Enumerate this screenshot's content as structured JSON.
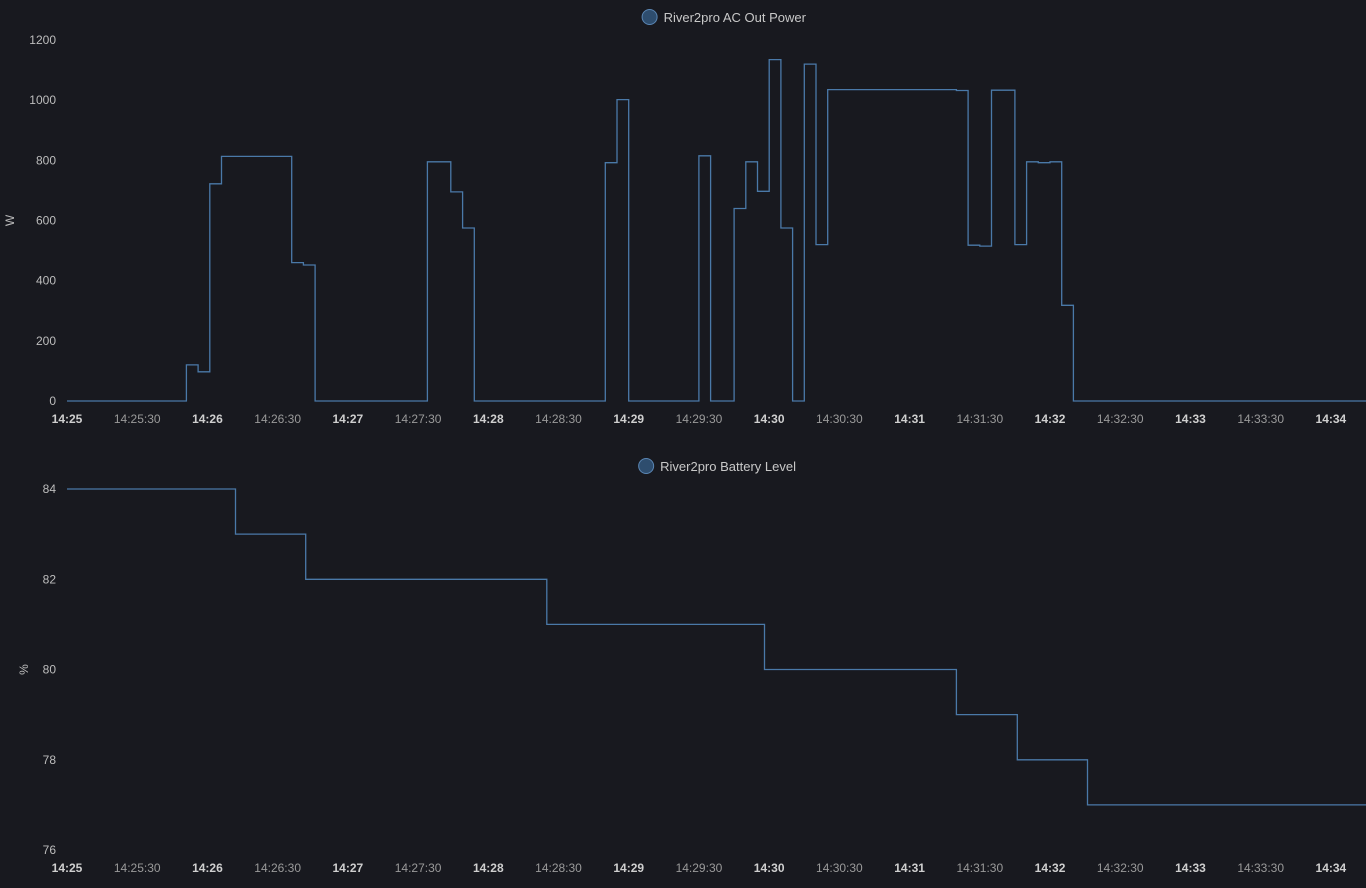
{
  "colors": {
    "background": "#18191f",
    "series": "#4a79a8",
    "legend_marker_fill": "#2e4d6e",
    "legend_marker_stroke": "#5a86b4",
    "axis_line": "#3a3c44"
  },
  "chart_data": [
    {
      "type": "line",
      "step": true,
      "ylabel": "W",
      "ylim": [
        0,
        1200
      ],
      "yticks": [
        0,
        200,
        400,
        600,
        800,
        1000,
        1200
      ],
      "xlim": [
        "14:25:00",
        "14:34:15"
      ],
      "grid": false,
      "legend_position": "top-center",
      "xticks": [
        {
          "time": "14:25:00",
          "label": "14:25",
          "major": true
        },
        {
          "time": "14:25:30",
          "label": "14:25:30",
          "major": false
        },
        {
          "time": "14:26:00",
          "label": "14:26",
          "major": true
        },
        {
          "time": "14:26:30",
          "label": "14:26:30",
          "major": false
        },
        {
          "time": "14:27:00",
          "label": "14:27",
          "major": true
        },
        {
          "time": "14:27:30",
          "label": "14:27:30",
          "major": false
        },
        {
          "time": "14:28:00",
          "label": "14:28",
          "major": true
        },
        {
          "time": "14:28:30",
          "label": "14:28:30",
          "major": false
        },
        {
          "time": "14:29:00",
          "label": "14:29",
          "major": true
        },
        {
          "time": "14:29:30",
          "label": "14:29:30",
          "major": false
        },
        {
          "time": "14:30:00",
          "label": "14:30",
          "major": true
        },
        {
          "time": "14:30:30",
          "label": "14:30:30",
          "major": false
        },
        {
          "time": "14:31:00",
          "label": "14:31",
          "major": true
        },
        {
          "time": "14:31:30",
          "label": "14:31:30",
          "major": false
        },
        {
          "time": "14:32:00",
          "label": "14:32",
          "major": true
        },
        {
          "time": "14:32:30",
          "label": "14:32:30",
          "major": false
        },
        {
          "time": "14:33:00",
          "label": "14:33",
          "major": true
        },
        {
          "time": "14:33:30",
          "label": "14:33:30",
          "major": false
        },
        {
          "time": "14:34:00",
          "label": "14:34",
          "major": true
        }
      ],
      "series": [
        {
          "name": "River2pro AC Out Power",
          "x": [
            "14:25:00",
            "14:25:51",
            "14:25:56",
            "14:26:01",
            "14:26:06",
            "14:26:30",
            "14:26:36",
            "14:26:41",
            "14:26:46",
            "14:27:34",
            "14:27:44",
            "14:27:49",
            "14:27:54",
            "14:28:40",
            "14:28:50",
            "14:28:55",
            "14:29:00",
            "14:29:20",
            "14:29:25",
            "14:29:30",
            "14:29:35",
            "14:29:40",
            "14:29:45",
            "14:29:50",
            "14:29:55",
            "14:30:00",
            "14:30:05",
            "14:30:10",
            "14:30:15",
            "14:30:20",
            "14:30:25",
            "14:31:20",
            "14:31:25",
            "14:31:30",
            "14:31:35",
            "14:31:45",
            "14:31:50",
            "14:31:55",
            "14:32:00",
            "14:32:05",
            "14:32:10",
            "14:32:15",
            "14:32:20",
            "14:32:25",
            "14:32:30",
            "14:34:15"
          ],
          "y": [
            0,
            120,
            97,
            722,
            813,
            813,
            460,
            452,
            0,
            795,
            695,
            575,
            0,
            0,
            792,
            1002,
            0,
            0,
            0,
            815,
            0,
            0,
            640,
            795,
            697,
            1135,
            575,
            0,
            1120,
            520,
            1035,
            1032,
            518,
            515,
            1033,
            520,
            795,
            792,
            795,
            318,
            0,
            0,
            0,
            0,
            0,
            0
          ]
        }
      ],
      "x_compact_note": ""
    },
    {
      "type": "line",
      "step": true,
      "ylabel": "%",
      "ylim": [
        76,
        84
      ],
      "yticks": [
        76,
        78,
        80,
        82,
        84
      ],
      "xlim": [
        "14:25:00",
        "14:34:15"
      ],
      "grid": false,
      "legend_position": "top-center",
      "xticks": [
        {
          "time": "14:25:00",
          "label": "14:25",
          "major": true
        },
        {
          "time": "14:25:30",
          "label": "14:25:30",
          "major": false
        },
        {
          "time": "14:26:00",
          "label": "14:26",
          "major": true
        },
        {
          "time": "14:26:30",
          "label": "14:26:30",
          "major": false
        },
        {
          "time": "14:27:00",
          "label": "14:27",
          "major": true
        },
        {
          "time": "14:27:30",
          "label": "14:27:30",
          "major": false
        },
        {
          "time": "14:28:00",
          "label": "14:28",
          "major": true
        },
        {
          "time": "14:28:30",
          "label": "14:28:30",
          "major": false
        },
        {
          "time": "14:29:00",
          "label": "14:29",
          "major": true
        },
        {
          "time": "14:29:30",
          "label": "14:29:30",
          "major": false
        },
        {
          "time": "14:30:00",
          "label": "14:30",
          "major": true
        },
        {
          "time": "14:30:30",
          "label": "14:30:30",
          "major": false
        },
        {
          "time": "14:31:00",
          "label": "14:31",
          "major": true
        },
        {
          "time": "14:31:30",
          "label": "14:31:30",
          "major": false
        },
        {
          "time": "14:32:00",
          "label": "14:32",
          "major": true
        },
        {
          "time": "14:32:30",
          "label": "14:32:30",
          "major": false
        },
        {
          "time": "14:33:00",
          "label": "14:33",
          "major": true
        },
        {
          "time": "14:33:30",
          "label": "14:33:30",
          "major": false
        },
        {
          "time": "14:34:00",
          "label": "14:34",
          "major": true
        }
      ],
      "series": [
        {
          "name": "River2pro Battery Level",
          "x": [
            "14:25:00",
            "14:26:12",
            "14:26:42",
            "14:28:25",
            "14:29:58",
            "14:31:20",
            "14:31:46",
            "14:32:16",
            "14:34:15"
          ],
          "y": [
            84,
            83,
            82,
            81,
            80,
            79,
            78,
            77,
            77
          ]
        }
      ]
    }
  ]
}
